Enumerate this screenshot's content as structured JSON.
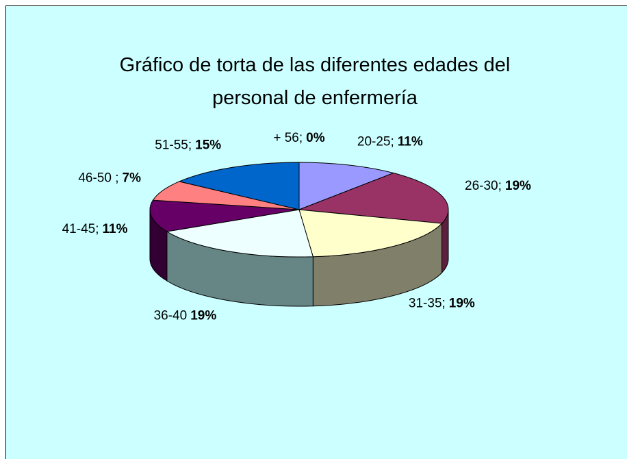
{
  "chart_data": {
    "type": "pie3d",
    "title": [
      "Gráfico de torta de las diferentes edades del",
      "personal de enfermería"
    ],
    "categories": [
      "20-25;",
      "26-30;",
      "31-35;",
      "36-40",
      "41-45;",
      "46-50 ;",
      "51-55;",
      "+ 56;"
    ],
    "values": [
      11,
      19,
      19,
      19,
      11,
      7,
      15,
      0
    ],
    "value_labels": [
      "11%",
      "19%",
      "19%",
      "19%",
      "11%",
      "7%",
      "15%",
      "0%"
    ],
    "colors": [
      "#9999ff",
      "#993366",
      "#ffffcc",
      "#eeffff",
      "#660066",
      "#ff8080",
      "#0066cc",
      "#ccffcc"
    ],
    "side_colors": [
      "#5c5c99",
      "#5c1f3d",
      "#80806a",
      "#668585",
      "#330033",
      "#994d4d",
      "#003d7a",
      "#7a997a"
    ]
  }
}
